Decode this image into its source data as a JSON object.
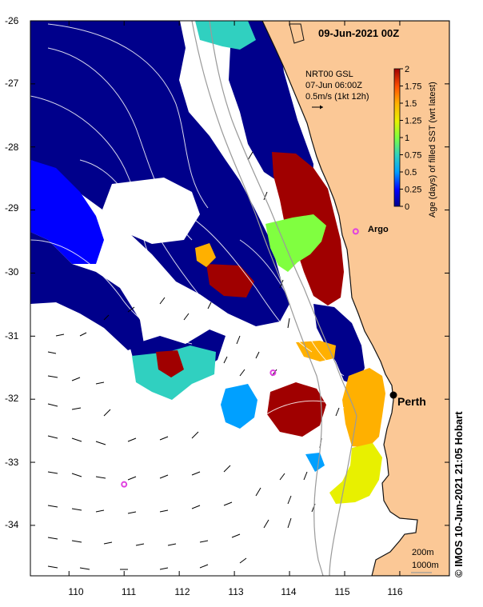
{
  "title": "09-Jun-2021 00Z",
  "credit": "© IMOS 10-Jun-2021 21:05 Hobart",
  "current_info": {
    "line1": "NRT00 GSL",
    "line2": "07-Jun 06:00Z",
    "line3": "0.5m/s (1kt 12h)"
  },
  "colorbar": {
    "label": "Age (days) of filled SST (wrt latest)",
    "ticks": [
      "0",
      "0.25",
      "0.5",
      "0.75",
      "1",
      "1.25",
      "1.5",
      "1.75",
      "2"
    ],
    "range": [
      0,
      2
    ],
    "colors": [
      "#00008b",
      "#0000ff",
      "#00a0ff",
      "#30d0c0",
      "#80ff40",
      "#e8f000",
      "#ffb000",
      "#ff5000",
      "#a00000"
    ]
  },
  "axes": {
    "x_ticks": [
      "110",
      "111",
      "112",
      "113",
      "114",
      "115",
      "116"
    ],
    "y_ticks": [
      "-26",
      "-27",
      "-28",
      "-29",
      "-30",
      "-31",
      "-32",
      "-33",
      "-34"
    ],
    "lon_range": [
      109.3,
      116.9
    ],
    "lat_range": [
      -26.0,
      -34.8
    ]
  },
  "places": [
    {
      "name": "Perth",
      "lon": 115.86,
      "lat": -31.95
    },
    {
      "name": "Argo",
      "lon": 115.2,
      "lat": -29.34
    }
  ],
  "argo_floats": [
    {
      "lon": 115.2,
      "lat": -29.34
    },
    {
      "lon": 113.7,
      "lat": -31.58
    },
    {
      "lon": 111.0,
      "lat": -33.35
    }
  ],
  "isobaths": [
    "200m",
    "1000m"
  ],
  "colors": {
    "land": "#fbc896",
    "coast": "#111111",
    "isobath": "#9a9a9a"
  }
}
